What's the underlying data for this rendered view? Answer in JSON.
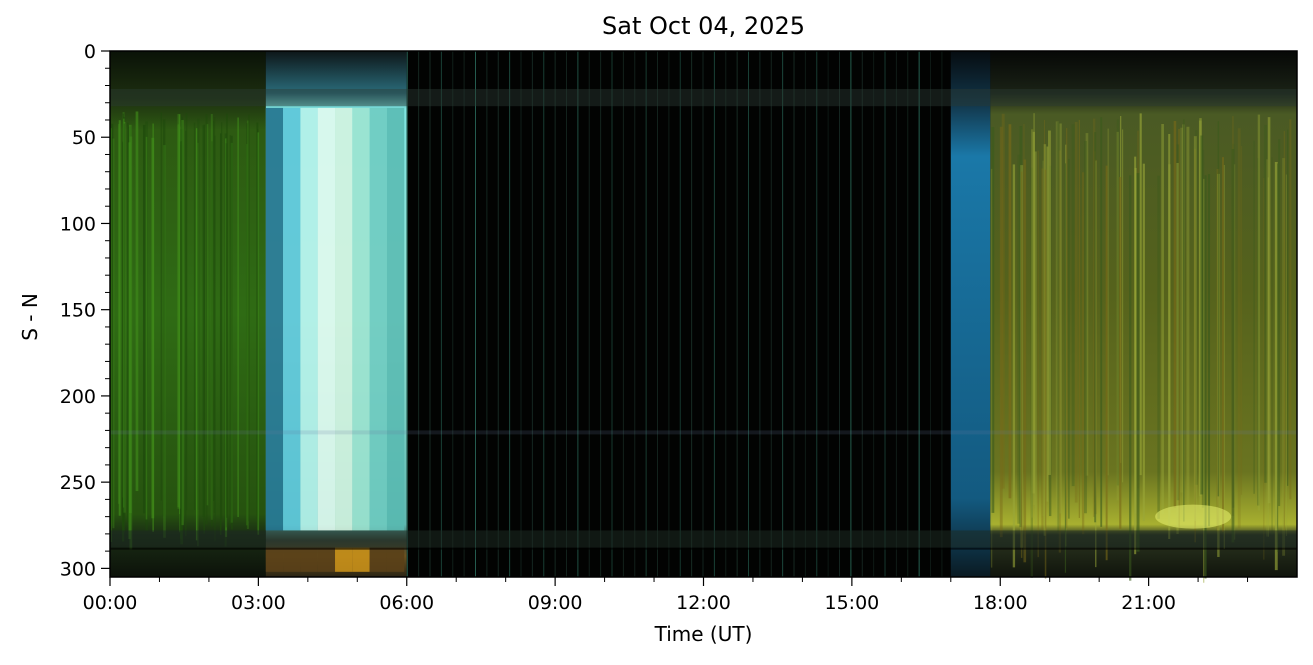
{
  "chart_data": {
    "type": "heatmap",
    "title": "Sat Oct 04, 2025",
    "xlabel": "Time (UT)",
    "ylabel": "S - N",
    "x_ticks": [
      "00:00",
      "03:00",
      "06:00",
      "09:00",
      "12:00",
      "15:00",
      "18:00",
      "21:00"
    ],
    "x_tick_hours": [
      0,
      3,
      6,
      9,
      12,
      15,
      18,
      21
    ],
    "x_range_hours": [
      0,
      24
    ],
    "y_ticks": [
      0,
      50,
      100,
      150,
      200,
      250,
      300
    ],
    "ylim": [
      305,
      0
    ],
    "grid": false,
    "segments": [
      {
        "name": "aurora-green-early",
        "start_hour": 0.0,
        "end_hour": 3.15,
        "color": "#2f6b12"
      },
      {
        "name": "twilight-cyan-dawn",
        "start_hour": 3.15,
        "end_hour": 6.0,
        "color": "#7fd8d0"
      },
      {
        "name": "daylight-dark",
        "start_hour": 6.0,
        "end_hour": 17.0,
        "color": "#020302"
      },
      {
        "name": "twilight-blue-dusk",
        "start_hour": 17.0,
        "end_hour": 17.8,
        "color": "#1b79a8"
      },
      {
        "name": "aurora-yellow-green-late",
        "start_hour": 17.8,
        "end_hour": 24.0,
        "color": "#5c6a20"
      }
    ]
  }
}
